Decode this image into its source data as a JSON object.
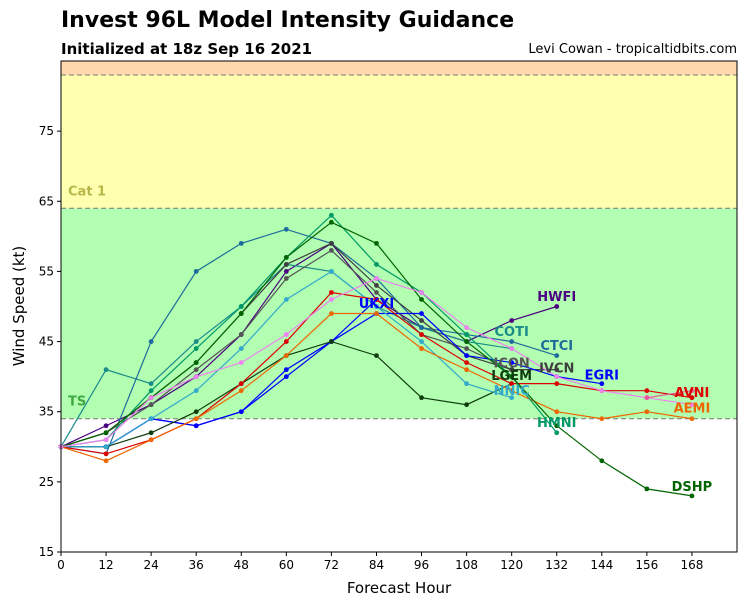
{
  "title": "Invest 96L Model Intensity Guidance",
  "subtitle": "Initialized at 18z Sep 16 2021",
  "credit": "Levi Cowan - tropicaltidbits.com",
  "chart_data": {
    "type": "line",
    "xlabel": "Forecast Hour",
    "ylabel": "Wind Speed (kt)",
    "xlim": [
      0,
      180
    ],
    "ylim": [
      15,
      85
    ],
    "xticks": [
      0,
      12,
      24,
      36,
      48,
      60,
      72,
      84,
      96,
      108,
      120,
      132,
      144,
      156,
      168
    ],
    "yticks": [
      15,
      25,
      35,
      45,
      55,
      65,
      75
    ],
    "bands": [
      {
        "from": 15,
        "to": 34,
        "color": "#ffffff",
        "label": ""
      },
      {
        "from": 34,
        "to": 64,
        "color": "#b2ffb2",
        "label": "TS",
        "label_color": "#3fa83f"
      },
      {
        "from": 64,
        "to": 83,
        "color": "#ffffb0",
        "label": "Cat 1",
        "label_color": "#b8b84a"
      },
      {
        "from": 83,
        "to": 85,
        "color": "#ffd9ad",
        "label": ""
      }
    ],
    "series": [
      {
        "name": "HWFI",
        "color": "#4b0082",
        "label_at": [
          132,
          51.5
        ],
        "x": [
          0,
          12,
          24,
          36,
          48,
          60,
          72,
          84,
          96,
          108,
          120,
          132
        ],
        "y": [
          30,
          33,
          36,
          40,
          46,
          55,
          59,
          51,
          47,
          45,
          48,
          50
        ]
      },
      {
        "name": "COTI",
        "color": "#1a8a8a",
        "label_at": [
          120,
          46.5
        ],
        "x": [
          0,
          12,
          24,
          36,
          48,
          60,
          72,
          84,
          96,
          108,
          120
        ],
        "y": [
          30,
          41,
          39,
          45,
          50,
          56,
          55,
          50,
          47,
          45,
          44
        ]
      },
      {
        "name": "CTCI",
        "color": "#1e6a9c",
        "label_at": [
          132,
          44.5
        ],
        "x": [
          0,
          12,
          24,
          36,
          48,
          60,
          72,
          84,
          96,
          108,
          120,
          132
        ],
        "y": [
          30,
          29,
          45,
          55,
          59,
          61,
          59,
          54,
          47,
          46,
          45,
          43
        ]
      },
      {
        "name": "UKXI",
        "color": "#0000ff",
        "label_at": [
          84,
          50.5
        ],
        "x": [
          0,
          12,
          24,
          36,
          48,
          60,
          72,
          84
        ],
        "y": [
          30,
          30,
          34,
          33,
          35,
          40,
          45,
          51
        ]
      },
      {
        "name": "ICON",
        "color": "#555555",
        "label_at": [
          120,
          42.0
        ],
        "x": [
          0,
          12,
          24,
          36,
          48,
          60,
          72,
          84,
          96,
          108,
          120
        ],
        "y": [
          30,
          32,
          36,
          41,
          46,
          54,
          58,
          52,
          46,
          44,
          41
        ]
      },
      {
        "name": "IVCN",
        "color": "#3f3f3f",
        "label_at": [
          132,
          41.3
        ],
        "x": [
          0,
          12,
          24,
          36,
          48,
          60,
          72,
          84,
          96,
          108,
          120,
          132
        ],
        "y": [
          30,
          32,
          37,
          42,
          49,
          56,
          59,
          53,
          48,
          43,
          41,
          41
        ]
      },
      {
        "name": "EGRI",
        "color": "#0000ff",
        "label_at": [
          144,
          40.3
        ],
        "x": [
          0,
          12,
          24,
          36,
          48,
          60,
          72,
          84,
          96,
          108,
          120,
          132,
          144
        ],
        "y": [
          30,
          30,
          34,
          33,
          35,
          41,
          45,
          49,
          49,
          43,
          42,
          40,
          39
        ]
      },
      {
        "name": "LGEM",
        "color": "#0f3d0f",
        "label_at": [
          120,
          40.2
        ],
        "x": [
          0,
          12,
          24,
          36,
          48,
          60,
          72,
          84,
          96,
          108,
          120
        ],
        "y": [
          30,
          30,
          32,
          35,
          39,
          43,
          45,
          43,
          37,
          36,
          39
        ]
      },
      {
        "name": "NNIC",
        "color": "#33aacc",
        "label_at": [
          120,
          38.1
        ],
        "x": [
          0,
          12,
          24,
          36,
          48,
          60,
          72,
          84,
          96,
          108,
          120
        ],
        "y": [
          30,
          30,
          34,
          38,
          44,
          51,
          55,
          50,
          45,
          39,
          37
        ]
      },
      {
        "name": "AVNI",
        "color": "#dd0000",
        "label_at": [
          168,
          37.8
        ],
        "x": [
          0,
          12,
          24,
          36,
          48,
          60,
          72,
          84,
          96,
          108,
          120,
          132,
          144,
          156,
          168
        ],
        "y": [
          30,
          29,
          31,
          34,
          39,
          45,
          52,
          51,
          46,
          42,
          39,
          39,
          38,
          38,
          37
        ]
      },
      {
        "name": "AEMI",
        "color": "#ee6600",
        "label_at": [
          168,
          35.6
        ],
        "x": [
          0,
          12,
          24,
          36,
          48,
          60,
          72,
          84,
          96,
          108,
          120,
          132,
          144,
          156,
          168
        ],
        "y": [
          30,
          28,
          31,
          34,
          38,
          43,
          49,
          49,
          44,
          41,
          38,
          35,
          34,
          35,
          34
        ]
      },
      {
        "name": "HMNI",
        "color": "#009966",
        "label_at": [
          132,
          33.5
        ],
        "x": [
          0,
          12,
          24,
          36,
          48,
          60,
          72,
          84,
          96,
          108,
          120,
          132
        ],
        "y": [
          30,
          31,
          38,
          44,
          50,
          57,
          63,
          56,
          52,
          46,
          40,
          32
        ]
      },
      {
        "name": "DSHP",
        "color": "#006400",
        "label_at": [
          168,
          24.4
        ],
        "x": [
          0,
          12,
          24,
          36,
          48,
          60,
          72,
          84,
          96,
          108,
          120,
          132,
          144,
          156,
          168
        ],
        "y": [
          30,
          32,
          37,
          42,
          49,
          57,
          62,
          59,
          51,
          45,
          40,
          33,
          28,
          24,
          23
        ]
      },
      {
        "name": "",
        "color": "#ee82ee",
        "x": [
          0,
          12,
          24,
          36,
          48,
          60,
          72,
          84,
          96,
          108,
          120,
          132,
          144,
          156,
          168
        ],
        "y": [
          30,
          31,
          37,
          40,
          42,
          46,
          51,
          54,
          52,
          47,
          44,
          40,
          38,
          37,
          36
        ]
      },
      {
        "name": "",
        "color": "#e8559a",
        "x": [
          156,
          168
        ],
        "y": [
          37,
          38
        ]
      }
    ]
  }
}
